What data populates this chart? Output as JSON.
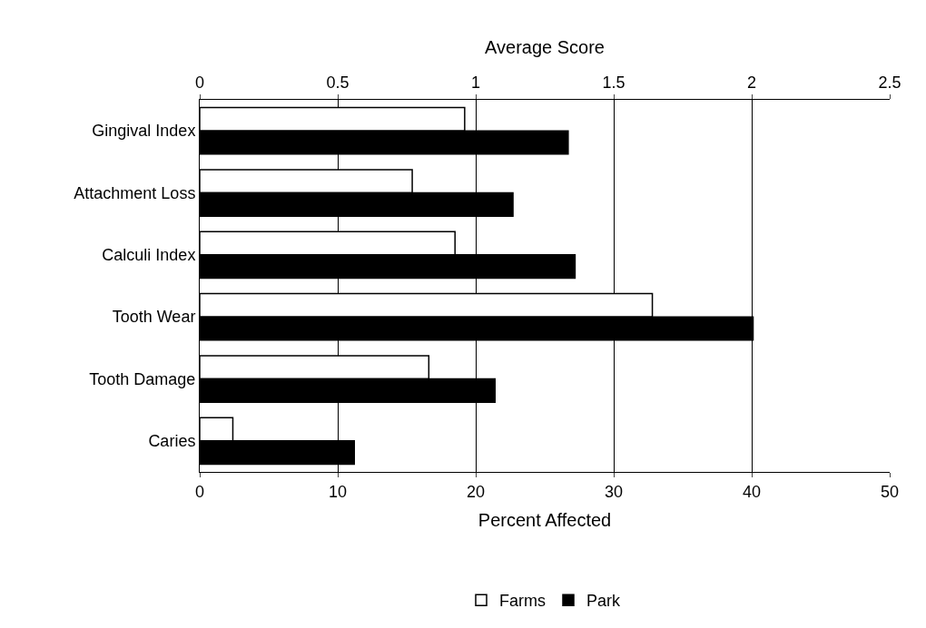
{
  "chart_data": {
    "type": "bar",
    "orientation": "horizontal",
    "xlabel": "Percent Affected",
    "x2label": "Average Score",
    "categories": [
      "Gingival Index",
      "Attachment Loss",
      "Calculi Index",
      "Tooth Wear",
      "Tooth Damage",
      "Caries"
    ],
    "series": [
      {
        "name": "Farms",
        "color": "#ffffff",
        "values": [
          19.2,
          15.4,
          18.5,
          32.8,
          16.6,
          2.4
        ]
      },
      {
        "name": "Park",
        "color": "#000000",
        "values": [
          26.7,
          22.7,
          27.2,
          40.1,
          21.4,
          11.2
        ]
      }
    ],
    "xlim": [
      0,
      50
    ],
    "xticks": [
      0,
      10,
      20,
      30,
      40,
      50
    ],
    "x2lim": [
      0,
      2.5
    ],
    "x2ticks": [
      0,
      0.5,
      1,
      1.5,
      2,
      2.5
    ],
    "grid": "x",
    "legend": "bottom"
  }
}
